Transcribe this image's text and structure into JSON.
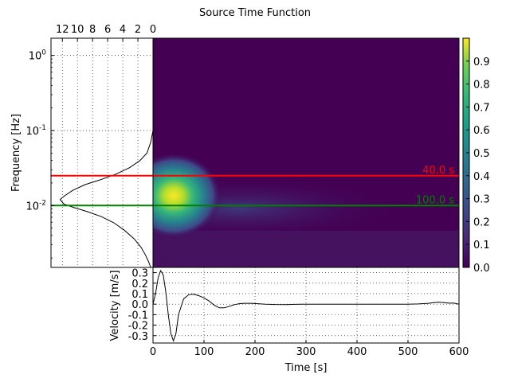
{
  "chart_data": [
    {
      "type": "heatmap",
      "title": "Source Time Function",
      "xlabel": "",
      "ylabel": "",
      "xlim": [
        0,
        600
      ],
      "ylim": [
        0.0015,
        1.7
      ],
      "yscale": "log",
      "colormap": "viridis",
      "colorbar": {
        "range": [
          0,
          1
        ],
        "ticks": [
          "0.0",
          "0.1",
          "0.2",
          "0.3",
          "0.4",
          "0.5",
          "0.6",
          "0.7",
          "0.8",
          "0.9"
        ],
        "values": [
          0,
          0.1,
          0.2,
          0.3,
          0.4,
          0.5,
          0.6,
          0.7,
          0.8,
          0.9
        ]
      },
      "peak": {
        "time": 40,
        "frequency": 0.014,
        "value": 1.0
      },
      "lines": [
        {
          "frequency": 0.025,
          "label": "40.0 s",
          "color": "#ff0000"
        },
        {
          "frequency": 0.01,
          "label": "100.0 s",
          "color": "#008000"
        }
      ]
    },
    {
      "type": "line",
      "xlabel": "",
      "ylabel": "Frequency [Hz]",
      "yscale": "log",
      "ylim": [
        0.0015,
        1.7
      ],
      "xlim": [
        13.5,
        0
      ],
      "x_ticks": [
        "12",
        "10",
        "8",
        "6",
        "4",
        "2",
        "0"
      ],
      "x_tick_values": [
        12,
        10,
        8,
        6,
        4,
        2,
        0
      ],
      "y_ticks": [
        {
          "base": "10",
          "exp": "0",
          "value": 1
        },
        {
          "base": "10",
          "exp": "-1",
          "value": 0.1
        },
        {
          "base": "10",
          "exp": "-2",
          "value": 0.01
        }
      ],
      "grid": true,
      "spectrum": [
        {
          "f": 0.1,
          "amp": 0.0
        },
        {
          "f": 0.07,
          "amp": 0.3
        },
        {
          "f": 0.05,
          "amp": 0.8
        },
        {
          "f": 0.04,
          "amp": 1.7
        },
        {
          "f": 0.032,
          "amp": 3.1
        },
        {
          "f": 0.026,
          "amp": 5.0
        },
        {
          "f": 0.022,
          "amp": 7.0
        },
        {
          "f": 0.019,
          "amp": 9.0
        },
        {
          "f": 0.016,
          "amp": 10.6
        },
        {
          "f": 0.0135,
          "amp": 11.7
        },
        {
          "f": 0.012,
          "amp": 12.3
        },
        {
          "f": 0.0105,
          "amp": 11.8
        },
        {
          "f": 0.0095,
          "amp": 10.6
        },
        {
          "f": 0.0083,
          "amp": 8.7
        },
        {
          "f": 0.0071,
          "amp": 6.8
        },
        {
          "f": 0.0059,
          "amp": 5.2
        },
        {
          "f": 0.0047,
          "amp": 3.8
        },
        {
          "f": 0.0036,
          "amp": 2.5
        },
        {
          "f": 0.0028,
          "amp": 1.6
        },
        {
          "f": 0.0022,
          "amp": 1.0
        },
        {
          "f": 0.0018,
          "amp": 0.6
        },
        {
          "f": 0.0015,
          "amp": 0.3
        }
      ]
    },
    {
      "type": "line",
      "xlabel": "Time [s]",
      "ylabel": "Velocity [m/s]",
      "xlim": [
        0,
        600
      ],
      "ylim": [
        -0.37,
        0.35
      ],
      "x_ticks": [
        "0",
        "100",
        "200",
        "300",
        "400",
        "500",
        "600"
      ],
      "x_tick_values": [
        0,
        100,
        200,
        300,
        400,
        500,
        600
      ],
      "y_ticks": [
        "0.3",
        "0.2",
        "0.1",
        "0.0",
        "-0.1",
        "-0.2",
        "-0.3"
      ],
      "y_tick_values": [
        0.3,
        0.2,
        0.1,
        0.0,
        -0.1,
        -0.2,
        -0.3
      ],
      "grid": true,
      "series": [
        {
          "x": [
            0,
            5,
            10,
            15,
            20,
            25,
            30,
            35,
            40,
            45,
            50,
            60,
            70,
            80,
            90,
            100,
            110,
            120,
            130,
            140,
            150,
            160,
            170,
            180,
            190,
            200,
            220,
            240,
            260,
            280,
            300,
            350,
            400,
            450,
            500,
            520,
            540,
            550,
            560,
            570,
            580,
            590,
            600
          ],
          "values": [
            0.0,
            0.1,
            0.25,
            0.32,
            0.28,
            0.12,
            -0.1,
            -0.28,
            -0.35,
            -0.28,
            -0.1,
            0.05,
            0.09,
            0.095,
            0.08,
            0.06,
            0.03,
            -0.01,
            -0.035,
            -0.035,
            -0.02,
            -0.005,
            0.005,
            0.008,
            0.008,
            0.006,
            0.0,
            -0.003,
            -0.004,
            -0.002,
            0.0,
            0.0,
            0.0,
            0.0,
            0.0,
            0.002,
            0.008,
            0.015,
            0.018,
            0.015,
            0.01,
            0.01,
            0.0
          ]
        }
      ]
    }
  ]
}
